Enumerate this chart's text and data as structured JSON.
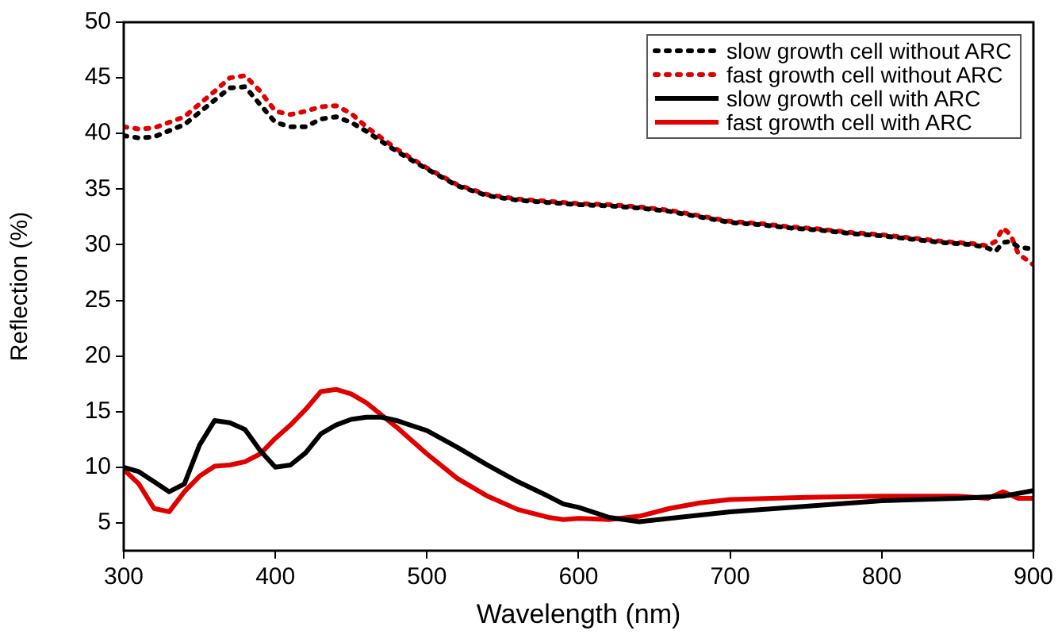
{
  "chart_data": {
    "type": "line",
    "xlabel": "Wavelength (nm)",
    "ylabel": "Reflection (%)",
    "xlim": [
      300,
      900
    ],
    "xticks": [
      300,
      400,
      500,
      600,
      700,
      800,
      900
    ],
    "ylim": [
      2.5,
      50
    ],
    "yticks": [
      5,
      10,
      15,
      20,
      25,
      30,
      35,
      40,
      45,
      50
    ],
    "grid": false,
    "legend": "top right",
    "marker": "none",
    "series": [
      {
        "name": "slow growth cell without ARC",
        "color": "#000000",
        "line_style": "dotted",
        "x": [
          300,
          310,
          320,
          340,
          360,
          370,
          380,
          390,
          400,
          410,
          420,
          430,
          440,
          450,
          460,
          480,
          500,
          520,
          540,
          560,
          580,
          600,
          620,
          640,
          660,
          680,
          700,
          720,
          740,
          760,
          780,
          800,
          820,
          840,
          860,
          870,
          875,
          880,
          885,
          890,
          900
        ],
        "values": [
          39.8,
          39.6,
          39.7,
          40.8,
          43,
          44.1,
          44.2,
          42.6,
          41,
          40.6,
          40.6,
          41.3,
          41.5,
          41,
          40.2,
          38.4,
          36.8,
          35.3,
          34.4,
          34,
          33.8,
          33.6,
          33.5,
          33.3,
          33,
          32.5,
          32,
          31.8,
          31.5,
          31.3,
          31,
          30.8,
          30.5,
          30.2,
          30,
          29.7,
          29.4,
          30.2,
          30.3,
          29.8,
          29.6
        ]
      },
      {
        "name": "fast growth cell without ARC",
        "color": "#e00000",
        "line_style": "dotted",
        "x": [
          300,
          310,
          320,
          340,
          360,
          370,
          380,
          390,
          400,
          410,
          420,
          430,
          440,
          450,
          460,
          480,
          500,
          520,
          540,
          560,
          580,
          600,
          620,
          640,
          660,
          680,
          700,
          720,
          740,
          760,
          780,
          800,
          820,
          840,
          860,
          870,
          875,
          880,
          885,
          890,
          900
        ],
        "values": [
          40.6,
          40.4,
          40.5,
          41.5,
          43.8,
          45,
          45.2,
          43.8,
          42,
          41.7,
          42,
          42.4,
          42.5,
          41.8,
          40.6,
          38.6,
          36.9,
          35.4,
          34.5,
          34.1,
          33.9,
          33.7,
          33.6,
          33.4,
          33.1,
          32.6,
          32.1,
          31.9,
          31.6,
          31.4,
          31.1,
          30.9,
          30.6,
          30.3,
          30.1,
          29.9,
          30.3,
          31.5,
          30.9,
          29.2,
          28.2
        ]
      },
      {
        "name": "slow growth cell with ARC",
        "color": "#000000",
        "line_style": "solid",
        "x": [
          300,
          310,
          320,
          330,
          340,
          350,
          360,
          370,
          380,
          390,
          400,
          410,
          420,
          430,
          440,
          450,
          460,
          470,
          480,
          500,
          520,
          540,
          560,
          580,
          590,
          600,
          620,
          640,
          660,
          700,
          750,
          800,
          850,
          880,
          900
        ],
        "values": [
          10,
          9.6,
          8.7,
          7.8,
          8.5,
          12,
          14.2,
          14,
          13.4,
          11.5,
          10,
          10.2,
          11.3,
          13,
          13.8,
          14.3,
          14.5,
          14.5,
          14.2,
          13.3,
          11.8,
          10.2,
          8.7,
          7.4,
          6.7,
          6.4,
          5.5,
          5.1,
          5.4,
          6,
          6.5,
          7,
          7.2,
          7.4,
          7.9
        ]
      },
      {
        "name": "fast growth cell with ARC",
        "color": "#e00000",
        "line_style": "solid",
        "x": [
          300,
          310,
          320,
          330,
          340,
          350,
          360,
          370,
          380,
          390,
          400,
          410,
          420,
          430,
          440,
          450,
          460,
          480,
          500,
          520,
          540,
          560,
          580,
          590,
          600,
          620,
          640,
          660,
          680,
          700,
          750,
          800,
          850,
          870,
          880,
          890,
          900
        ],
        "values": [
          9.8,
          8.5,
          6.3,
          6,
          7.8,
          9.2,
          10.1,
          10.2,
          10.5,
          11.2,
          12.6,
          13.8,
          15.2,
          16.8,
          17,
          16.6,
          15.8,
          13.6,
          11.2,
          9,
          7.4,
          6.2,
          5.5,
          5.3,
          5.4,
          5.3,
          5.6,
          6.3,
          6.8,
          7.1,
          7.3,
          7.4,
          7.4,
          7.2,
          7.8,
          7.2,
          7.2
        ]
      }
    ]
  }
}
